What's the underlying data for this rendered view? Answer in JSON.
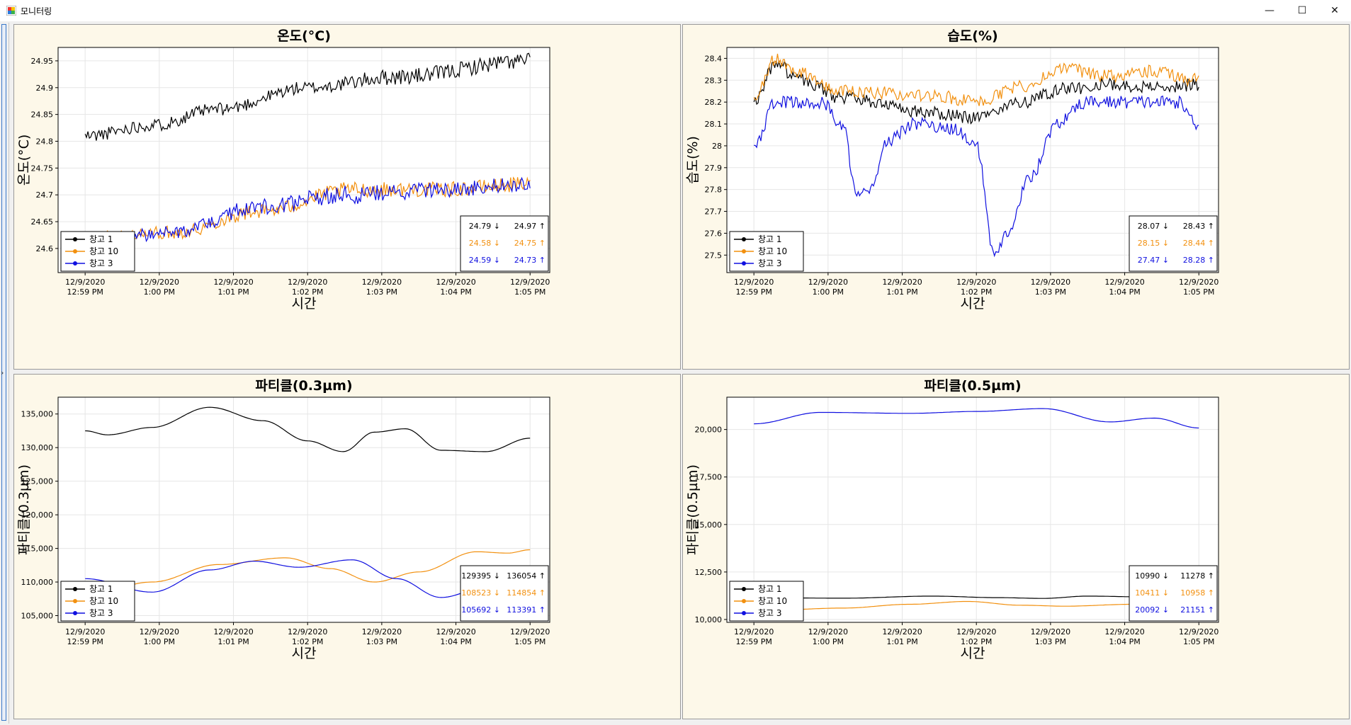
{
  "window": {
    "title": "모니터링",
    "minimize_glyph": "—",
    "maximize_glyph": "☐",
    "close_glyph": "✕",
    "icon": "app-chart-icon"
  },
  "colors": {
    "s1": "#000000",
    "s2": "#f2900f",
    "s3": "#1010e0",
    "panel_bg": "#fdf8e9",
    "grid": "#e6e6e6"
  },
  "legend_labels": [
    "창고 1",
    "창고 10",
    "창고 3"
  ],
  "chart_data": [
    {
      "type": "line",
      "title": "온도(°C)",
      "ylabel": "온도(°C)",
      "xlabel": "시간",
      "x_ticks": [
        [
          "12/9/2020",
          "12:59 PM"
        ],
        [
          "12/9/2020",
          "1:00 PM"
        ],
        [
          "12/9/2020",
          "1:01 PM"
        ],
        [
          "12/9/2020",
          "1:02 PM"
        ],
        [
          "12/9/2020",
          "1:03 PM"
        ],
        [
          "12/9/2020",
          "1:04 PM"
        ],
        [
          "12/9/2020",
          "1:05 PM"
        ]
      ],
      "y_ticks": [
        "24.6",
        "24.65",
        "24.7",
        "24.75",
        "24.8",
        "24.85",
        "24.9",
        "24.95"
      ],
      "ylim": [
        24.555,
        24.975
      ],
      "legend_position": "bottom-left",
      "series": [
        {
          "name": "창고 1",
          "keys": [
            [
              0,
              24.81,
              0.012
            ],
            [
              0.15,
              24.83,
              0.012
            ],
            [
              0.3,
              24.86,
              0.012
            ],
            [
              0.5,
              24.9,
              0.012
            ],
            [
              0.7,
              24.92,
              0.015
            ],
            [
              1,
              24.95,
              0.015
            ]
          ]
        },
        {
          "name": "창고 10",
          "keys": [
            [
              0,
              24.62,
              0.012
            ],
            [
              0.2,
              24.63,
              0.012
            ],
            [
              0.4,
              24.67,
              0.014
            ],
            [
              0.6,
              24.71,
              0.014
            ],
            [
              0.8,
              24.71,
              0.014
            ],
            [
              1,
              24.72,
              0.014
            ]
          ]
        },
        {
          "name": "창고 3",
          "keys": [
            [
              0,
              24.61,
              0.012
            ],
            [
              0.2,
              24.63,
              0.012
            ],
            [
              0.4,
              24.68,
              0.016
            ],
            [
              0.6,
              24.7,
              0.018
            ],
            [
              0.8,
              24.71,
              0.014
            ],
            [
              1,
              24.72,
              0.014
            ]
          ]
        }
      ],
      "stats": [
        [
          "24.79 ↓",
          "24.97 ↑"
        ],
        [
          "24.58 ↓",
          "24.75 ↑"
        ],
        [
          "24.59 ↓",
          "24.73 ↑"
        ]
      ]
    },
    {
      "type": "line",
      "title": "습도(%)",
      "ylabel": "습도(%)",
      "xlabel": "시간",
      "x_ticks": [
        [
          "12/9/2020",
          "12:59 PM"
        ],
        [
          "12/9/2020",
          "1:00 PM"
        ],
        [
          "12/9/2020",
          "1:01 PM"
        ],
        [
          "12/9/2020",
          "1:02 PM"
        ],
        [
          "12/9/2020",
          "1:03 PM"
        ],
        [
          "12/9/2020",
          "1:04 PM"
        ],
        [
          "12/9/2020",
          "1:05 PM"
        ]
      ],
      "y_ticks": [
        "27.5",
        "27.6",
        "27.7",
        "27.8",
        "27.9",
        "28",
        "28.1",
        "28.2",
        "28.3",
        "28.4"
      ],
      "ylim": [
        27.42,
        28.45
      ],
      "legend_position": "bottom-left",
      "series": [
        {
          "name": "창고 1",
          "keys": [
            [
              0,
              28.2,
              0.02
            ],
            [
              0.05,
              28.38,
              0.03
            ],
            [
              0.1,
              28.3,
              0.03
            ],
            [
              0.2,
              28.22,
              0.03
            ],
            [
              0.4,
              28.15,
              0.03
            ],
            [
              0.5,
              28.13,
              0.03
            ],
            [
              0.6,
              28.2,
              0.03
            ],
            [
              0.7,
              28.26,
              0.03
            ],
            [
              0.8,
              28.28,
              0.03
            ],
            [
              0.9,
              28.27,
              0.03
            ],
            [
              1,
              28.28,
              0.03
            ]
          ]
        },
        {
          "name": "창고 10",
          "keys": [
            [
              0,
              28.22,
              0.02
            ],
            [
              0.05,
              28.4,
              0.03
            ],
            [
              0.1,
              28.34,
              0.03
            ],
            [
              0.2,
              28.25,
              0.03
            ],
            [
              0.4,
              28.23,
              0.03
            ],
            [
              0.5,
              28.2,
              0.03
            ],
            [
              0.6,
              28.27,
              0.03
            ],
            [
              0.7,
              28.35,
              0.03
            ],
            [
              0.8,
              28.32,
              0.03
            ],
            [
              0.9,
              28.34,
              0.03
            ],
            [
              1,
              28.3,
              0.03
            ]
          ]
        },
        {
          "name": "창고 3",
          "keys": [
            [
              0,
              28.0,
              0.02
            ],
            [
              0.05,
              28.2,
              0.03
            ],
            [
              0.15,
              28.2,
              0.03
            ],
            [
              0.2,
              28.1,
              0.03
            ],
            [
              0.23,
              27.78,
              0.02
            ],
            [
              0.26,
              27.8,
              0.02
            ],
            [
              0.3,
              28.02,
              0.03
            ],
            [
              0.36,
              28.1,
              0.03
            ],
            [
              0.45,
              28.08,
              0.03
            ],
            [
              0.5,
              28.0,
              0.03
            ],
            [
              0.54,
              27.5,
              0.02
            ],
            [
              0.57,
              27.6,
              0.02
            ],
            [
              0.62,
              27.85,
              0.03
            ],
            [
              0.68,
              28.1,
              0.03
            ],
            [
              0.75,
              28.2,
              0.03
            ],
            [
              0.85,
              28.2,
              0.03
            ],
            [
              0.95,
              28.2,
              0.03
            ],
            [
              1,
              28.1,
              0.03
            ]
          ]
        }
      ],
      "stats": [
        [
          "28.07 ↓",
          "28.43 ↑"
        ],
        [
          "28.15 ↓",
          "28.44 ↑"
        ],
        [
          "27.47 ↓",
          "28.28 ↑"
        ]
      ]
    },
    {
      "type": "line",
      "title": "파티클(0.3µm)",
      "ylabel": "파티클(0.3µm)",
      "xlabel": "시간",
      "x_ticks": [
        [
          "12/9/2020",
          "12:59 PM"
        ],
        [
          "12/9/2020",
          "1:00 PM"
        ],
        [
          "12/9/2020",
          "1:01 PM"
        ],
        [
          "12/9/2020",
          "1:02 PM"
        ],
        [
          "12/9/2020",
          "1:03 PM"
        ],
        [
          "12/9/2020",
          "1:04 PM"
        ],
        [
          "12/9/2020",
          "1:05 PM"
        ]
      ],
      "y_ticks": [
        "105,000",
        "110,000",
        "115,000",
        "120,000",
        "125,000",
        "130,000",
        "135,000"
      ],
      "ylim": [
        104000,
        137500
      ],
      "legend_position": "bottom-left",
      "series": [
        {
          "name": "창고 1",
          "keys": [
            [
              0,
              132500,
              0
            ],
            [
              0.05,
              131900,
              0
            ],
            [
              0.15,
              133000,
              0
            ],
            [
              0.28,
              136000,
              0
            ],
            [
              0.4,
              134000,
              0
            ],
            [
              0.5,
              131000,
              0
            ],
            [
              0.58,
              129400,
              0
            ],
            [
              0.65,
              132300,
              0
            ],
            [
              0.72,
              132800,
              0
            ],
            [
              0.8,
              129600,
              0
            ],
            [
              0.9,
              129400,
              0
            ],
            [
              1,
              131400,
              0
            ]
          ]
        },
        {
          "name": "창고 10",
          "keys": [
            [
              0,
              108000,
              0
            ],
            [
              0.15,
              110000,
              0
            ],
            [
              0.3,
              112600,
              0
            ],
            [
              0.45,
              113600,
              0
            ],
            [
              0.55,
              112000,
              0
            ],
            [
              0.65,
              110000,
              0
            ],
            [
              0.75,
              111500,
              0
            ],
            [
              0.88,
              114500,
              0
            ],
            [
              0.95,
              114300,
              0
            ],
            [
              1,
              114800,
              0
            ]
          ]
        },
        {
          "name": "창고 3",
          "keys": [
            [
              0,
              110500,
              0
            ],
            [
              0.15,
              108500,
              0
            ],
            [
              0.28,
              111800,
              0
            ],
            [
              0.38,
              113100,
              0
            ],
            [
              0.48,
              112200,
              0
            ],
            [
              0.6,
              113300,
              0
            ],
            [
              0.7,
              110500,
              0
            ],
            [
              0.8,
              107700,
              0
            ],
            [
              0.9,
              109200,
              0
            ],
            [
              1,
              110400,
              0
            ]
          ]
        }
      ],
      "stats": [
        [
          "129395 ↓",
          "136054 ↑"
        ],
        [
          "108523 ↓",
          "114854 ↑"
        ],
        [
          "105692 ↓",
          "113391 ↑"
        ]
      ]
    },
    {
      "type": "line",
      "title": "파티클(0.5µm)",
      "ylabel": "파티클(0.5µm)",
      "xlabel": "시간",
      "x_ticks": [
        [
          "12/9/2020",
          "12:59 PM"
        ],
        [
          "12/9/2020",
          "1:00 PM"
        ],
        [
          "12/9/2020",
          "1:01 PM"
        ],
        [
          "12/9/2020",
          "1:02 PM"
        ],
        [
          "12/9/2020",
          "1:03 PM"
        ],
        [
          "12/9/2020",
          "1:04 PM"
        ],
        [
          "12/9/2020",
          "1:05 PM"
        ]
      ],
      "y_ticks": [
        "10,000",
        "12,500",
        "15,000",
        "17,500",
        "20,000"
      ],
      "ylim": [
        9850,
        21700
      ],
      "legend_position": "bottom-left",
      "series": [
        {
          "name": "창고 1",
          "keys": [
            [
              0,
              11150,
              0
            ],
            [
              0.2,
              11120,
              0
            ],
            [
              0.4,
              11230,
              0
            ],
            [
              0.55,
              11150,
              0
            ],
            [
              0.65,
              11110,
              0
            ],
            [
              0.75,
              11230,
              0
            ],
            [
              0.9,
              11180,
              0
            ],
            [
              1,
              11200,
              0
            ]
          ]
        },
        {
          "name": "창고 10",
          "keys": [
            [
              0,
              10450,
              0
            ],
            [
              0.2,
              10600,
              0
            ],
            [
              0.35,
              10800,
              0
            ],
            [
              0.48,
              10950,
              0
            ],
            [
              0.6,
              10750,
              0
            ],
            [
              0.7,
              10700,
              0
            ],
            [
              0.85,
              10800,
              0
            ],
            [
              1,
              10900,
              0
            ]
          ]
        },
        {
          "name": "창고 3",
          "keys": [
            [
              0,
              20300,
              0
            ],
            [
              0.15,
              20900,
              0
            ],
            [
              0.35,
              20850,
              0
            ],
            [
              0.5,
              20950,
              0
            ],
            [
              0.65,
              21100,
              0
            ],
            [
              0.8,
              20400,
              0
            ],
            [
              0.9,
              20600,
              0
            ],
            [
              1,
              20080,
              0
            ]
          ]
        }
      ],
      "stats": [
        [
          "10990 ↓",
          "11278 ↑"
        ],
        [
          "10411 ↓",
          "10958 ↑"
        ],
        [
          "20092 ↓",
          "21151 ↑"
        ]
      ]
    }
  ]
}
